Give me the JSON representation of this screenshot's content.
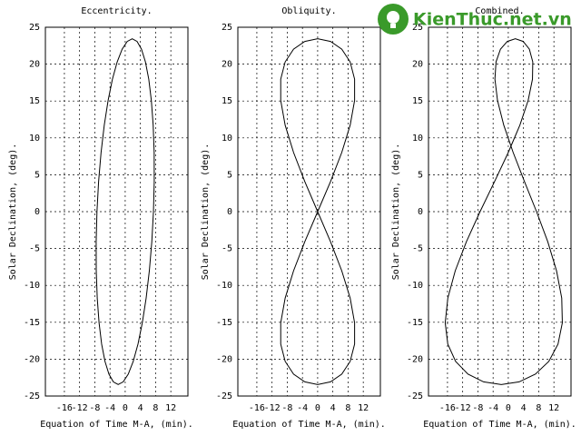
{
  "chart_data": [
    {
      "type": "line",
      "title": "Eccentricity.",
      "xlabel": "Equation of Time M-A, (min).",
      "ylabel": "Solar Declination, (deg).",
      "x": [
        7.43,
        7.64,
        7.62,
        7.36,
        6.88,
        6.2,
        5.32,
        4.28,
        3.12,
        1.85,
        0.53,
        -0.8,
        -2.11,
        -3.36,
        -4.5,
        -5.51,
        -6.35,
        -7.0,
        -7.43,
        -7.64,
        -7.62,
        -7.36,
        -6.88,
        -6.2,
        -5.32,
        -4.28,
        -3.12,
        -1.85,
        -0.53,
        0.8,
        2.11,
        3.36,
        4.5,
        5.51,
        6.35,
        7.0
      ],
      "values": [
        0,
        4.07,
        8.02,
        11.72,
        15.07,
        17.96,
        20.3,
        22.03,
        23.08,
        23.44,
        23.08,
        22.03,
        20.3,
        17.96,
        15.07,
        11.72,
        8.02,
        4.07,
        0,
        -4.07,
        -8.02,
        -11.72,
        -15.07,
        -17.96,
        -20.3,
        -22.03,
        -23.08,
        -23.44,
        -23.08,
        -22.03,
        -20.3,
        -17.96,
        -15.07,
        -11.72,
        -8.02,
        -4.07
      ],
      "color": "#000000",
      "xlim": [
        -21,
        16.5
      ],
      "ylim": [
        -25,
        25
      ],
      "xticks": [
        -16,
        -12,
        -8,
        -4,
        0,
        4,
        8,
        12
      ],
      "yticks": [
        -25,
        -20,
        -15,
        -10,
        -5,
        0,
        5,
        10,
        15,
        20,
        25
      ],
      "grid": true
    },
    {
      "type": "line",
      "title": "Obliquity.",
      "xlabel": "Equation of Time M-A, (min).",
      "ylabel": "Solar Declination, (deg).",
      "x": [
        0,
        -3.38,
        -6.34,
        -8.55,
        -9.72,
        -9.72,
        -8.55,
        -6.34,
        -3.38,
        0,
        3.38,
        6.34,
        8.55,
        9.72,
        9.72,
        8.55,
        6.34,
        3.38,
        0,
        -3.38,
        -6.34,
        -8.55,
        -9.72,
        -9.72,
        -8.55,
        -6.34,
        -3.38,
        0,
        3.38,
        6.34,
        8.55,
        9.72,
        9.72,
        8.55,
        6.34,
        3.38
      ],
      "values": [
        0,
        4.07,
        8.02,
        11.72,
        15.07,
        17.96,
        20.3,
        22.03,
        23.08,
        23.44,
        23.08,
        22.03,
        20.3,
        17.96,
        15.07,
        11.72,
        8.02,
        4.07,
        0,
        -4.07,
        -8.02,
        -11.72,
        -15.07,
        -17.96,
        -20.3,
        -22.03,
        -23.08,
        -23.44,
        -23.08,
        -22.03,
        -20.3,
        -17.96,
        -15.07,
        -11.72,
        -8.02,
        -4.07
      ],
      "color": "#000000",
      "xlim": [
        -21,
        16.5
      ],
      "ylim": [
        -25,
        25
      ],
      "xticks": [
        -16,
        -12,
        -8,
        -4,
        0,
        4,
        8,
        12
      ],
      "yticks": [
        -25,
        -20,
        -15,
        -10,
        -5,
        0,
        5,
        10,
        15,
        20,
        25
      ],
      "grid": true
    },
    {
      "type": "line",
      "title": "Combined.",
      "xlabel": "Equation of Time M-A, (min).",
      "ylabel": "Solar Declination, (deg).",
      "x": [
        7.43,
        4.26,
        1.28,
        -1.19,
        -2.84,
        -3.52,
        -3.23,
        -2.06,
        -0.26,
        1.85,
        3.91,
        5.54,
        6.44,
        6.36,
        5.22,
        3.04,
        -0.01,
        -3.62,
        -7.43,
        -11.02,
        -13.96,
        -15.91,
        -16.6,
        -15.92,
        -13.87,
        -10.62,
        -6.5,
        -1.85,
        2.85,
        7.14,
        10.66,
        13.08,
        14.22,
        14.06,
        12.69,
        10.38
      ],
      "values": [
        0,
        4.07,
        8.02,
        11.72,
        15.07,
        17.96,
        20.3,
        22.03,
        23.08,
        23.44,
        23.08,
        22.03,
        20.3,
        17.96,
        15.07,
        11.72,
        8.02,
        4.07,
        0,
        -4.07,
        -8.02,
        -11.72,
        -15.07,
        -17.96,
        -20.3,
        -22.03,
        -23.08,
        -23.44,
        -23.08,
        -22.03,
        -20.3,
        -17.96,
        -15.07,
        -11.72,
        -8.02,
        -4.07
      ],
      "color": "#000000",
      "xlim": [
        -21,
        16.5
      ],
      "ylim": [
        -25,
        25
      ],
      "xticks": [
        -16,
        -12,
        -8,
        -4,
        0,
        4,
        8,
        12
      ],
      "yticks": [
        -25,
        -20,
        -15,
        -10,
        -5,
        0,
        5,
        10,
        15,
        20,
        25
      ],
      "grid": true
    }
  ],
  "watermark": "KienThuc.net.vn"
}
